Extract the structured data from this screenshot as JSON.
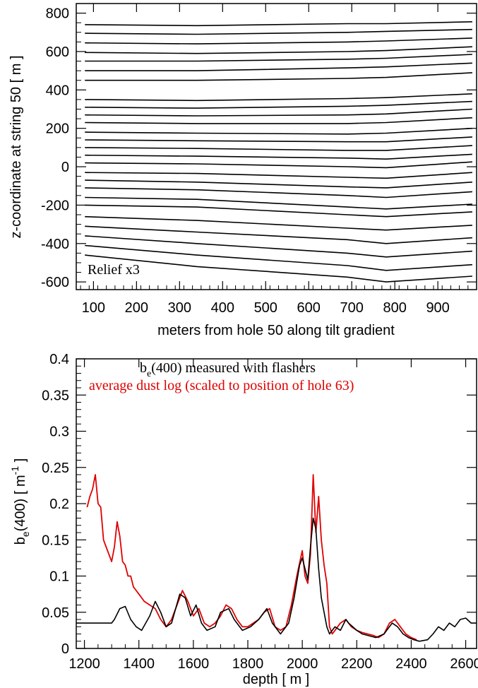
{
  "chart_data": [
    {
      "type": "line",
      "xlabel": "meters from hole 50 along tilt gradient",
      "ylabel": "z-coordinate at string 50 [ m ]",
      "annotation": "Relief x3",
      "xlim": [
        60,
        990
      ],
      "ylim": [
        -640,
        850
      ],
      "xticks": [
        100,
        200,
        300,
        400,
        500,
        600,
        700,
        800,
        900
      ],
      "yticks": [
        -600,
        -400,
        -200,
        0,
        200,
        400,
        600,
        800
      ],
      "grid": false,
      "line_color": "#000000",
      "x": [
        80,
        340,
        690,
        780,
        980
      ],
      "series": [
        {
          "values": [
            740,
            735,
            745,
            745,
            755
          ]
        },
        {
          "values": [
            695,
            690,
            700,
            705,
            715
          ]
        },
        {
          "values": [
            645,
            640,
            650,
            655,
            670
          ]
        },
        {
          "values": [
            595,
            590,
            600,
            605,
            625
          ]
        },
        {
          "values": [
            550,
            550,
            560,
            565,
            585
          ]
        },
        {
          "values": [
            500,
            500,
            515,
            520,
            540
          ]
        },
        {
          "values": [
            450,
            450,
            460,
            465,
            490
          ]
        },
        {
          "values": [
            350,
            345,
            355,
            360,
            380
          ]
        },
        {
          "values": [
            310,
            305,
            315,
            320,
            340
          ]
        },
        {
          "values": [
            270,
            265,
            270,
            275,
            300
          ]
        },
        {
          "values": [
            230,
            225,
            225,
            230,
            255
          ]
        },
        {
          "values": [
            180,
            175,
            170,
            175,
            200
          ]
        },
        {
          "values": [
            140,
            135,
            130,
            130,
            155
          ]
        },
        {
          "values": [
            100,
            95,
            85,
            85,
            110
          ]
        },
        {
          "values": [
            60,
            55,
            45,
            40,
            65
          ]
        },
        {
          "values": [
            20,
            15,
            0,
            -5,
            25
          ]
        },
        {
          "values": [
            -30,
            -35,
            -55,
            -60,
            -30
          ]
        },
        {
          "values": [
            -70,
            -80,
            -105,
            -110,
            -80
          ]
        },
        {
          "values": [
            -110,
            -120,
            -150,
            -160,
            -130
          ]
        },
        {
          "values": [
            -160,
            -170,
            -210,
            -220,
            -195
          ]
        },
        {
          "values": [
            -200,
            -210,
            -250,
            -260,
            -235
          ]
        },
        {
          "values": [
            -260,
            -280,
            -320,
            -330,
            -305
          ]
        },
        {
          "values": [
            -310,
            -340,
            -380,
            -400,
            -370
          ]
        },
        {
          "values": [
            -360,
            -400,
            -450,
            -470,
            -440
          ]
        },
        {
          "values": [
            -410,
            -460,
            -515,
            -540,
            -510
          ]
        },
        {
          "values": [
            -460,
            -520,
            -575,
            -600,
            -570
          ]
        }
      ]
    },
    {
      "type": "line",
      "xlabel": "depth [ m ]",
      "ylabel_main": "b",
      "ylabel_sub": "e",
      "ylabel_rest": "(400) [ m",
      "ylabel_sup": "-1",
      "ylabel_end": " ]",
      "xlim": [
        1170,
        2640
      ],
      "ylim": [
        0,
        0.4
      ],
      "xticks": [
        1200,
        1400,
        1600,
        1800,
        2000,
        2200,
        2400,
        2600
      ],
      "yticks": [
        0,
        0.05,
        0.1,
        0.15,
        0.2,
        0.25,
        0.3,
        0.35,
        0.4
      ],
      "ytick_labels": [
        "0",
        "0.05",
        "0.1",
        "0.15",
        "0.2",
        "0.25",
        "0.3",
        "0.35",
        "0.4"
      ],
      "grid": false,
      "legend": {
        "black_main": "b",
        "black_sub": "e",
        "black_rest": "(400) measured with flashers",
        "red": "average dust log (scaled to position of hole 63)"
      },
      "series": [
        {
          "color": "#000000",
          "x": [
            1170,
            1300,
            1310,
            1330,
            1350,
            1370,
            1390,
            1410,
            1440,
            1460,
            1480,
            1500,
            1520,
            1550,
            1570,
            1590,
            1610,
            1630,
            1650,
            1680,
            1700,
            1730,
            1750,
            1780,
            1810,
            1840,
            1870,
            1890,
            1920,
            1950,
            1970,
            1990,
            2000,
            2020,
            2030,
            2040,
            2050,
            2060,
            2070,
            2090,
            2100,
            2120,
            2140,
            2160,
            2170,
            2200,
            2220,
            2240,
            2270,
            2300,
            2330,
            2350,
            2370,
            2390,
            2410,
            2430,
            2460,
            2480,
            2500,
            2520,
            2540,
            2560,
            2580,
            2600,
            2620,
            2640
          ],
          "values": [
            0.035,
            0.035,
            0.04,
            0.055,
            0.058,
            0.04,
            0.03,
            0.025,
            0.045,
            0.065,
            0.05,
            0.03,
            0.035,
            0.075,
            0.07,
            0.045,
            0.06,
            0.035,
            0.025,
            0.03,
            0.05,
            0.055,
            0.04,
            0.025,
            0.03,
            0.04,
            0.055,
            0.035,
            0.02,
            0.035,
            0.07,
            0.115,
            0.125,
            0.095,
            0.14,
            0.18,
            0.165,
            0.11,
            0.07,
            0.03,
            0.02,
            0.03,
            0.025,
            0.04,
            0.035,
            0.025,
            0.02,
            0.018,
            0.015,
            0.02,
            0.035,
            0.03,
            0.02,
            0.015,
            0.012,
            0.01,
            0.012,
            0.02,
            0.03,
            0.025,
            0.035,
            0.03,
            0.04,
            0.042,
            0.035,
            0.035
          ]
        },
        {
          "color": "#e00000",
          "x": [
            1210,
            1220,
            1230,
            1240,
            1250,
            1260,
            1270,
            1280,
            1290,
            1300,
            1310,
            1320,
            1330,
            1340,
            1350,
            1360,
            1370,
            1380,
            1390,
            1400,
            1420,
            1440,
            1460,
            1480,
            1500,
            1520,
            1540,
            1560,
            1580,
            1600,
            1620,
            1640,
            1660,
            1680,
            1700,
            1720,
            1740,
            1760,
            1780,
            1800,
            1820,
            1840,
            1860,
            1880,
            1900,
            1920,
            1940,
            1960,
            1980,
            2000,
            2010,
            2020,
            2030,
            2040,
            2050,
            2060,
            2070,
            2080,
            2090,
            2100,
            2110,
            2120,
            2140,
            2160,
            2180,
            2200,
            2220,
            2240,
            2260,
            2280,
            2300,
            2320,
            2340,
            2360,
            2380,
            2400,
            2420
          ],
          "values": [
            0.195,
            0.21,
            0.22,
            0.24,
            0.2,
            0.195,
            0.15,
            0.14,
            0.13,
            0.12,
            0.14,
            0.175,
            0.155,
            0.12,
            0.115,
            0.1,
            0.1,
            0.085,
            0.08,
            0.075,
            0.065,
            0.06,
            0.055,
            0.04,
            0.03,
            0.04,
            0.06,
            0.08,
            0.065,
            0.045,
            0.055,
            0.035,
            0.03,
            0.035,
            0.045,
            0.06,
            0.055,
            0.04,
            0.03,
            0.03,
            0.035,
            0.04,
            0.05,
            0.055,
            0.03,
            0.025,
            0.03,
            0.06,
            0.1,
            0.135,
            0.1,
            0.09,
            0.13,
            0.24,
            0.16,
            0.21,
            0.15,
            0.115,
            0.09,
            0.03,
            0.02,
            0.025,
            0.035,
            0.04,
            0.03,
            0.025,
            0.022,
            0.02,
            0.018,
            0.015,
            0.02,
            0.035,
            0.04,
            0.03,
            0.02,
            0.015,
            0.012
          ]
        }
      ]
    }
  ]
}
